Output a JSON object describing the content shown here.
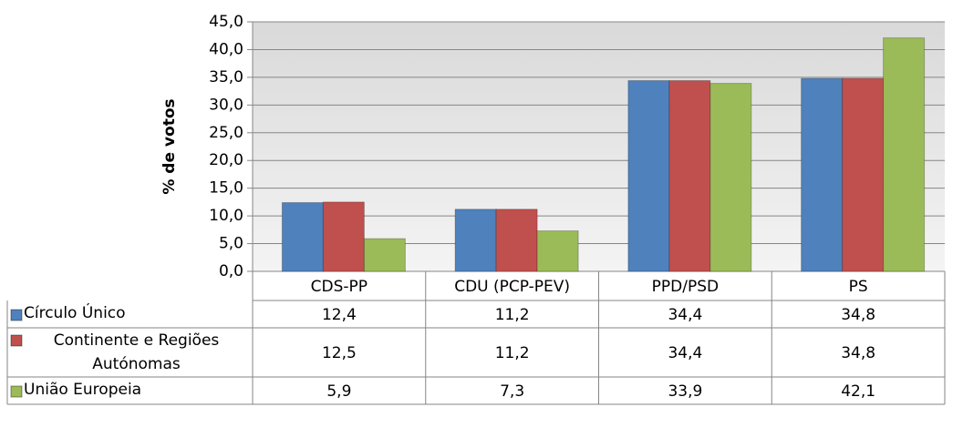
{
  "chart_data": {
    "type": "bar",
    "y_label": "% de votos",
    "categories": [
      "CDS-PP",
      "CDU (PCP-PEV)",
      "PPD/PSD",
      "PS"
    ],
    "series": [
      {
        "name": "Círculo Único",
        "color": "#4f81bd",
        "values": [
          12.4,
          11.2,
          34.4,
          34.8
        ],
        "value_labels": [
          "12,4",
          "11,2",
          "34,4",
          "34,8"
        ]
      },
      {
        "name": "Continente e Regiões Autónomas",
        "color": "#c0504d",
        "values": [
          12.5,
          11.2,
          34.4,
          34.8
        ],
        "value_labels": [
          "12,5",
          "11,2",
          "34,4",
          "34,8"
        ]
      },
      {
        "name": "União Europeia",
        "color": "#9bbb59",
        "values": [
          5.9,
          7.3,
          33.9,
          42.1
        ],
        "value_labels": [
          "5,9",
          "7,3",
          "33,9",
          "42,1"
        ]
      }
    ],
    "ylim": [
      0,
      45
    ],
    "yticks": [
      {
        "value": 0,
        "label": "0,0"
      },
      {
        "value": 5,
        "label": "5,0"
      },
      {
        "value": 10,
        "label": "10,0"
      },
      {
        "value": 15,
        "label": "15,0"
      },
      {
        "value": 20,
        "label": "20,0"
      },
      {
        "value": 25,
        "label": "25,0"
      },
      {
        "value": 30,
        "label": "30,0"
      },
      {
        "value": 35,
        "label": "35,0"
      },
      {
        "value": 40,
        "label": "40,0"
      },
      {
        "value": 45,
        "label": "45,0"
      }
    ],
    "grid": true,
    "data_table": true
  }
}
